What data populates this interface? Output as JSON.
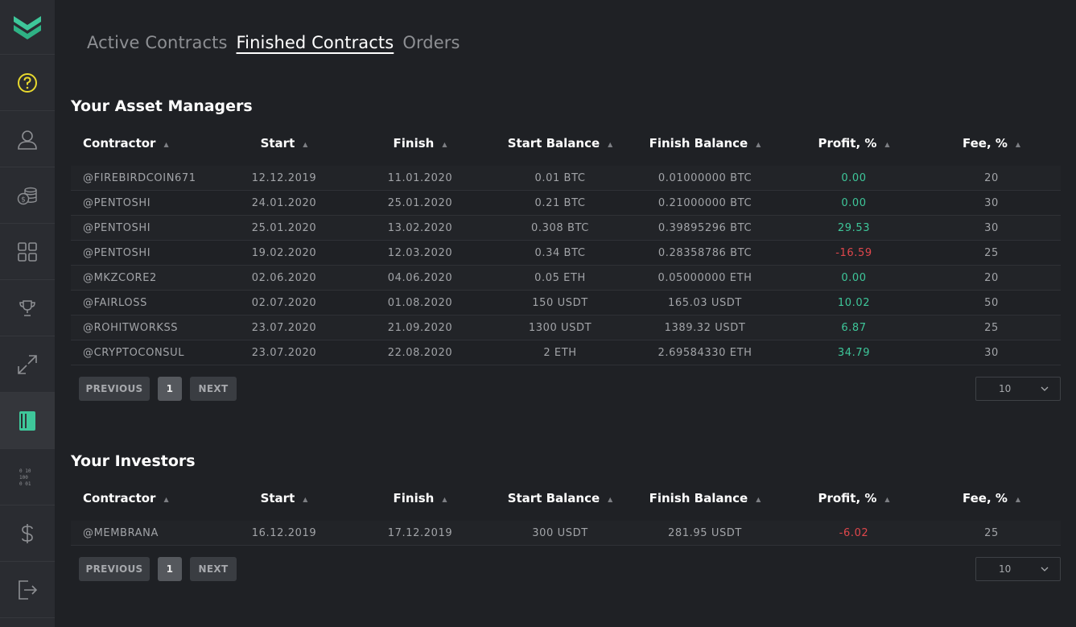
{
  "sidebar": {
    "items": [
      {
        "icon": "help-icon"
      },
      {
        "icon": "user-icon"
      },
      {
        "icon": "coins-icon"
      },
      {
        "icon": "grid-icon"
      },
      {
        "icon": "trophy-icon"
      },
      {
        "icon": "arrows-icon"
      },
      {
        "icon": "contracts-icon"
      },
      {
        "icon": "binary-icon"
      },
      {
        "icon": "dollar-icon"
      },
      {
        "icon": "logout-icon"
      }
    ],
    "accent": "#3ec79a",
    "help_color": "#e8d92e"
  },
  "tabs": [
    "Active Contracts",
    "Finished Contracts",
    "Orders"
  ],
  "active_tab": "Finished Contracts",
  "columns": [
    "Contractor",
    "Start",
    "Finish",
    "Start Balance",
    "Finish Balance",
    "Profit, %",
    "Fee, %"
  ],
  "sort_glyph": "▲",
  "managers": {
    "title": "Your Asset Managers",
    "rows": [
      [
        "@FIREBIRDCOIN671",
        "12.12.2019",
        "11.01.2020",
        "0.01 BTC",
        "0.01000000 BTC",
        "0.00",
        "20"
      ],
      [
        "@PENTOSHI",
        "24.01.2020",
        "25.01.2020",
        "0.21 BTC",
        "0.21000000 BTC",
        "0.00",
        "30"
      ],
      [
        "@PENTOSHI",
        "25.01.2020",
        "13.02.2020",
        "0.308 BTC",
        "0.39895296 BTC",
        "29.53",
        "30"
      ],
      [
        "@PENTOSHI",
        "19.02.2020",
        "12.03.2020",
        "0.34 BTC",
        "0.28358786 BTC",
        "-16.59",
        "25"
      ],
      [
        "@MKZCORE2",
        "02.06.2020",
        "04.06.2020",
        "0.05 ETH",
        "0.05000000 ETH",
        "0.00",
        "20"
      ],
      [
        "@FAIRLOSS",
        "02.07.2020",
        "01.08.2020",
        "150 USDT",
        "165.03 USDT",
        "10.02",
        "50"
      ],
      [
        "@ROHITWORKSS",
        "23.07.2020",
        "21.09.2020",
        "1300 USDT",
        "1389.32 USDT",
        "6.87",
        "25"
      ],
      [
        "@CRYPTOCONSUL",
        "23.07.2020",
        "22.08.2020",
        "2 ETH",
        "2.69584330 ETH",
        "34.79",
        "30"
      ]
    ]
  },
  "investors": {
    "title": "Your Investors",
    "rows": [
      [
        "@MEMBRANA",
        "16.12.2019",
        "17.12.2019",
        "300 USDT",
        "281.95 USDT",
        "-6.02",
        "25"
      ]
    ]
  },
  "pager": {
    "previous": "PREVIOUS",
    "page": "1",
    "next": "NEXT",
    "page_size": "10"
  }
}
